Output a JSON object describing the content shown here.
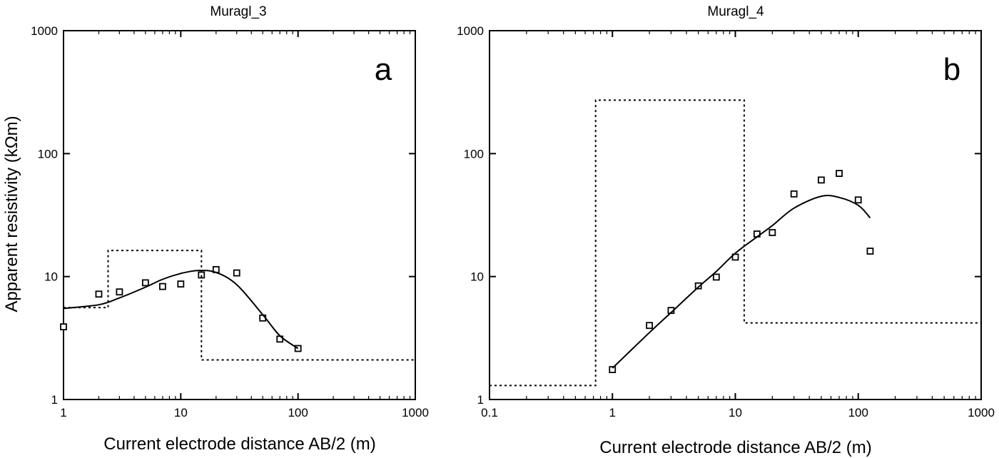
{
  "chart_data": [
    {
      "type": "scatter",
      "title": "Muragl_3",
      "panel_label": "a",
      "xlabel": "Current electrode distance AB/2 (m)",
      "ylabel": "Apparent resistivity (kΩm)",
      "xscale": "log",
      "yscale": "log",
      "xlim": [
        1,
        1000
      ],
      "ylim": [
        1,
        1000
      ],
      "xticks": [
        1,
        10,
        100,
        1000
      ],
      "xtick_labels": [
        "1",
        "10",
        "100",
        "1000"
      ],
      "yticks": [
        1,
        10,
        100,
        1000
      ],
      "ytick_labels": [
        "1",
        "10",
        "100",
        "1000"
      ],
      "grid": false,
      "series": [
        {
          "marker": "open-square",
          "points": [
            {
              "x": 1,
              "y": 3.9
            },
            {
              "x": 2,
              "y": 7.2
            },
            {
              "x": 3,
              "y": 7.5
            },
            {
              "x": 5,
              "y": 8.9
            },
            {
              "x": 7,
              "y": 8.3
            },
            {
              "x": 10,
              "y": 8.7
            },
            {
              "x": 15,
              "y": 10.3
            },
            {
              "x": 20,
              "y": 11.4
            },
            {
              "x": 30,
              "y": 10.7
            },
            {
              "x": 50,
              "y": 4.6
            },
            {
              "x": 70,
              "y": 3.1
            },
            {
              "x": 100,
              "y": 2.6
            }
          ]
        },
        {
          "style": "solid-line",
          "points": [
            {
              "x": 1,
              "y": 5.5
            },
            {
              "x": 2,
              "y": 5.9
            },
            {
              "x": 3,
              "y": 6.7
            },
            {
              "x": 5,
              "y": 8.2
            },
            {
              "x": 7,
              "y": 9.5
            },
            {
              "x": 10,
              "y": 10.6
            },
            {
              "x": 14,
              "y": 11.2
            },
            {
              "x": 20,
              "y": 10.8
            },
            {
              "x": 30,
              "y": 8.6
            },
            {
              "x": 50,
              "y": 4.9
            },
            {
              "x": 70,
              "y": 3.3
            },
            {
              "x": 100,
              "y": 2.6
            }
          ]
        },
        {
          "style": "dotted-line",
          "points": [
            {
              "x": 1,
              "y": 5.6
            },
            {
              "x": 2.4,
              "y": 5.6
            },
            {
              "x": 2.4,
              "y": 16.3
            },
            {
              "x": 15,
              "y": 16.3
            },
            {
              "x": 15,
              "y": 2.1
            },
            {
              "x": 1000,
              "y": 2.1
            }
          ]
        }
      ]
    },
    {
      "type": "scatter",
      "title": "Muragl_4",
      "panel_label": "b",
      "xlabel": "Current electrode distance AB/2 (m)",
      "ylabel": "",
      "xscale": "log",
      "yscale": "log",
      "xlim": [
        0.1,
        1000
      ],
      "ylim": [
        1,
        1000
      ],
      "xticks": [
        0.1,
        1,
        10,
        100,
        1000
      ],
      "xtick_labels": [
        "0.1",
        "1",
        "10",
        "100",
        "1000"
      ],
      "yticks": [
        1,
        10,
        100,
        1000
      ],
      "ytick_labels": [
        "1",
        "10",
        "100",
        "1000"
      ],
      "grid": false,
      "series": [
        {
          "marker": "open-square",
          "points": [
            {
              "x": 1,
              "y": 1.75
            },
            {
              "x": 2,
              "y": 4.0
            },
            {
              "x": 3,
              "y": 5.3
            },
            {
              "x": 5,
              "y": 8.4
            },
            {
              "x": 7,
              "y": 9.9
            },
            {
              "x": 10,
              "y": 14.4
            },
            {
              "x": 15,
              "y": 22.2
            },
            {
              "x": 20,
              "y": 22.8
            },
            {
              "x": 30,
              "y": 47
            },
            {
              "x": 50,
              "y": 61
            },
            {
              "x": 70,
              "y": 69
            },
            {
              "x": 100,
              "y": 42
            },
            {
              "x": 125,
              "y": 16.1
            }
          ]
        },
        {
          "style": "solid-line",
          "points": [
            {
              "x": 1,
              "y": 1.8
            },
            {
              "x": 2,
              "y": 3.5
            },
            {
              "x": 3,
              "y": 5.1
            },
            {
              "x": 5,
              "y": 8.2
            },
            {
              "x": 7,
              "y": 11.0
            },
            {
              "x": 10,
              "y": 15.5
            },
            {
              "x": 15,
              "y": 21.0
            },
            {
              "x": 20,
              "y": 26.0
            },
            {
              "x": 30,
              "y": 36.0
            },
            {
              "x": 50,
              "y": 45.0
            },
            {
              "x": 70,
              "y": 44.0
            },
            {
              "x": 100,
              "y": 38.0
            },
            {
              "x": 125,
              "y": 30.0
            }
          ]
        },
        {
          "style": "dotted-line",
          "points": [
            {
              "x": 0.1,
              "y": 1.3
            },
            {
              "x": 0.73,
              "y": 1.3
            },
            {
              "x": 0.73,
              "y": 272
            },
            {
              "x": 11.8,
              "y": 272
            },
            {
              "x": 11.8,
              "y": 4.2
            },
            {
              "x": 1000,
              "y": 4.2
            }
          ]
        }
      ]
    }
  ]
}
